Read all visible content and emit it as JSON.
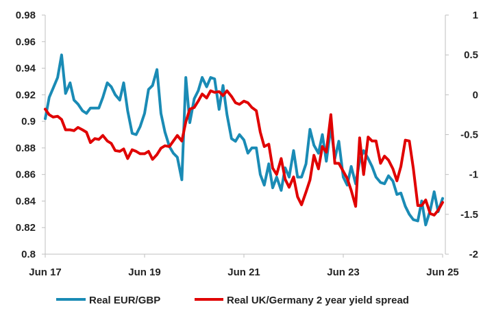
{
  "chart_data": {
    "type": "line",
    "x_tick_labels": [
      "Jun 17",
      "Jun 19",
      "Jun 21",
      "Jun 23",
      "Jun 25"
    ],
    "x_ticks": [
      2017.42,
      2019.42,
      2021.42,
      2023.42,
      2025.42
    ],
    "xlim": [
      2017.42,
      2025.42
    ],
    "y_left": {
      "lim": [
        0.8,
        0.98
      ],
      "ticks": [
        0.8,
        0.82,
        0.84,
        0.86,
        0.88,
        0.9,
        0.92,
        0.94,
        0.96,
        0.98
      ],
      "tick_labels": [
        "0.8",
        "0.82",
        "0.84",
        "0.86",
        "0.88",
        "0.9",
        "0.92",
        "0.94",
        "0.96",
        "0.98"
      ]
    },
    "y_right": {
      "lim": [
        -2,
        1
      ],
      "ticks": [
        -2,
        -1.5,
        -1,
        -0.5,
        0,
        0.5,
        1
      ],
      "tick_labels": [
        "-2",
        "-1.5",
        "-1",
        "-0.5",
        "0",
        "0.5",
        "1"
      ]
    },
    "grid": false,
    "legend_position": "bottom",
    "series": [
      {
        "name": "Real EUR/GBP",
        "axis": "left",
        "color": "#1a8bb5",
        "points": [
          [
            2017.42,
            0.902
          ],
          [
            2017.5,
            0.918
          ],
          [
            2017.58,
            0.925
          ],
          [
            2017.67,
            0.933
          ],
          [
            2017.75,
            0.95
          ],
          [
            2017.83,
            0.921
          ],
          [
            2017.92,
            0.929
          ],
          [
            2018.0,
            0.916
          ],
          [
            2018.08,
            0.913
          ],
          [
            2018.17,
            0.908
          ],
          [
            2018.25,
            0.906
          ],
          [
            2018.33,
            0.91
          ],
          [
            2018.42,
            0.91
          ],
          [
            2018.5,
            0.91
          ],
          [
            2018.58,
            0.918
          ],
          [
            2018.67,
            0.929
          ],
          [
            2018.75,
            0.926
          ],
          [
            2018.83,
            0.92
          ],
          [
            2018.92,
            0.916
          ],
          [
            2019.0,
            0.929
          ],
          [
            2019.08,
            0.908
          ],
          [
            2019.17,
            0.891
          ],
          [
            2019.25,
            0.89
          ],
          [
            2019.33,
            0.896
          ],
          [
            2019.42,
            0.906
          ],
          [
            2019.5,
            0.924
          ],
          [
            2019.58,
            0.927
          ],
          [
            2019.67,
            0.939
          ],
          [
            2019.75,
            0.906
          ],
          [
            2019.83,
            0.892
          ],
          [
            2019.92,
            0.881
          ],
          [
            2020.0,
            0.876
          ],
          [
            2020.08,
            0.873
          ],
          [
            2020.17,
            0.856
          ],
          [
            2020.25,
            0.933
          ],
          [
            2020.33,
            0.899
          ],
          [
            2020.42,
            0.917
          ],
          [
            2020.5,
            0.923
          ],
          [
            2020.58,
            0.933
          ],
          [
            2020.67,
            0.926
          ],
          [
            2020.75,
            0.933
          ],
          [
            2020.83,
            0.932
          ],
          [
            2020.92,
            0.909
          ],
          [
            2021.0,
            0.927
          ],
          [
            2021.08,
            0.905
          ],
          [
            2021.17,
            0.887
          ],
          [
            2021.25,
            0.885
          ],
          [
            2021.33,
            0.89
          ],
          [
            2021.42,
            0.886
          ],
          [
            2021.5,
            0.876
          ],
          [
            2021.58,
            0.88
          ],
          [
            2021.67,
            0.88
          ],
          [
            2021.75,
            0.86
          ],
          [
            2021.83,
            0.852
          ],
          [
            2021.92,
            0.868
          ],
          [
            2022.0,
            0.85
          ],
          [
            2022.08,
            0.858
          ],
          [
            2022.17,
            0.848
          ],
          [
            2022.25,
            0.865
          ],
          [
            2022.33,
            0.858
          ],
          [
            2022.42,
            0.878
          ],
          [
            2022.5,
            0.858
          ],
          [
            2022.58,
            0.858
          ],
          [
            2022.67,
            0.868
          ],
          [
            2022.75,
            0.894
          ],
          [
            2022.83,
            0.882
          ],
          [
            2022.92,
            0.876
          ],
          [
            2023.0,
            0.89
          ],
          [
            2023.08,
            0.87
          ],
          [
            2023.17,
            0.896
          ],
          [
            2023.25,
            0.872
          ],
          [
            2023.33,
            0.885
          ],
          [
            2023.42,
            0.858
          ],
          [
            2023.5,
            0.852
          ],
          [
            2023.58,
            0.866
          ],
          [
            2023.67,
            0.853
          ],
          [
            2023.75,
            0.87
          ],
          [
            2023.83,
            0.878
          ],
          [
            2023.92,
            0.872
          ],
          [
            2024.0,
            0.866
          ],
          [
            2024.08,
            0.858
          ],
          [
            2024.17,
            0.854
          ],
          [
            2024.25,
            0.853
          ],
          [
            2024.33,
            0.859
          ],
          [
            2024.42,
            0.855
          ],
          [
            2024.5,
            0.845
          ],
          [
            2024.58,
            0.846
          ],
          [
            2024.67,
            0.836
          ],
          [
            2024.75,
            0.83
          ],
          [
            2024.83,
            0.826
          ],
          [
            2024.92,
            0.825
          ],
          [
            2025.0,
            0.84
          ],
          [
            2025.08,
            0.822
          ],
          [
            2025.17,
            0.833
          ],
          [
            2025.25,
            0.847
          ],
          [
            2025.33,
            0.832
          ],
          [
            2025.42,
            0.842
          ]
        ]
      },
      {
        "name": "Real UK/Germany 2 year yield spread",
        "axis": "right",
        "color": "#e00000",
        "points": [
          [
            2017.42,
            -0.18
          ],
          [
            2017.5,
            -0.25
          ],
          [
            2017.58,
            -0.28
          ],
          [
            2017.67,
            -0.27
          ],
          [
            2017.75,
            -0.31
          ],
          [
            2017.83,
            -0.44
          ],
          [
            2017.92,
            -0.44
          ],
          [
            2018.0,
            -0.45
          ],
          [
            2018.08,
            -0.41
          ],
          [
            2018.17,
            -0.44
          ],
          [
            2018.25,
            -0.47
          ],
          [
            2018.33,
            -0.6
          ],
          [
            2018.42,
            -0.55
          ],
          [
            2018.5,
            -0.56
          ],
          [
            2018.58,
            -0.51
          ],
          [
            2018.67,
            -0.58
          ],
          [
            2018.75,
            -0.61
          ],
          [
            2018.83,
            -0.7
          ],
          [
            2018.92,
            -0.71
          ],
          [
            2019.0,
            -0.68
          ],
          [
            2019.08,
            -0.8
          ],
          [
            2019.17,
            -0.69
          ],
          [
            2019.25,
            -0.71
          ],
          [
            2019.33,
            -0.74
          ],
          [
            2019.42,
            -0.74
          ],
          [
            2019.5,
            -0.71
          ],
          [
            2019.58,
            -0.81
          ],
          [
            2019.67,
            -0.75
          ],
          [
            2019.75,
            -0.67
          ],
          [
            2019.83,
            -0.64
          ],
          [
            2019.92,
            -0.65
          ],
          [
            2020.0,
            -0.58
          ],
          [
            2020.08,
            -0.51
          ],
          [
            2020.17,
            -0.58
          ],
          [
            2020.25,
            -0.34
          ],
          [
            2020.33,
            -0.18
          ],
          [
            2020.42,
            -0.16
          ],
          [
            2020.5,
            -0.08
          ],
          [
            2020.58,
            0.01
          ],
          [
            2020.67,
            -0.04
          ],
          [
            2020.75,
            0.05
          ],
          [
            2020.83,
            0.03
          ],
          [
            2020.92,
            0.04
          ],
          [
            2021.0,
            -0.01
          ],
          [
            2021.08,
            0.05
          ],
          [
            2021.17,
            -0.02
          ],
          [
            2021.25,
            -0.1
          ],
          [
            2021.33,
            -0.12
          ],
          [
            2021.42,
            -0.08
          ],
          [
            2021.5,
            -0.1
          ],
          [
            2021.58,
            -0.16
          ],
          [
            2021.67,
            -0.2
          ],
          [
            2021.75,
            -0.47
          ],
          [
            2021.83,
            -0.65
          ],
          [
            2021.92,
            -0.62
          ],
          [
            2022.0,
            -0.92
          ],
          [
            2022.08,
            -1.0
          ],
          [
            2022.17,
            -0.8
          ],
          [
            2022.25,
            -1.06
          ],
          [
            2022.33,
            -1.16
          ],
          [
            2022.42,
            -1.03
          ],
          [
            2022.5,
            -1.28
          ],
          [
            2022.58,
            -1.38
          ],
          [
            2022.67,
            -1.22
          ],
          [
            2022.75,
            -1.07
          ],
          [
            2022.83,
            -0.76
          ],
          [
            2022.92,
            -0.93
          ],
          [
            2023.0,
            -0.65
          ],
          [
            2023.08,
            -0.72
          ],
          [
            2023.17,
            -0.25
          ],
          [
            2023.25,
            -0.86
          ],
          [
            2023.33,
            -0.86
          ],
          [
            2023.42,
            -0.96
          ],
          [
            2023.5,
            -1.05
          ],
          [
            2023.58,
            -1.2
          ],
          [
            2023.67,
            -1.4
          ],
          [
            2023.75,
            -0.54
          ],
          [
            2023.83,
            -1.0
          ],
          [
            2023.92,
            -0.53
          ],
          [
            2024.0,
            -0.58
          ],
          [
            2024.08,
            -0.58
          ],
          [
            2024.17,
            -0.86
          ],
          [
            2024.25,
            -0.77
          ],
          [
            2024.33,
            -0.82
          ],
          [
            2024.42,
            -0.93
          ],
          [
            2024.5,
            -1.08
          ],
          [
            2024.58,
            -0.9
          ],
          [
            2024.67,
            -0.57
          ],
          [
            2024.75,
            -0.58
          ],
          [
            2024.83,
            -0.92
          ],
          [
            2024.92,
            -1.39
          ],
          [
            2025.0,
            -1.39
          ],
          [
            2025.08,
            -1.32
          ],
          [
            2025.17,
            -1.49
          ],
          [
            2025.25,
            -1.51
          ],
          [
            2025.33,
            -1.45
          ],
          [
            2025.42,
            -1.35
          ]
        ]
      }
    ]
  }
}
